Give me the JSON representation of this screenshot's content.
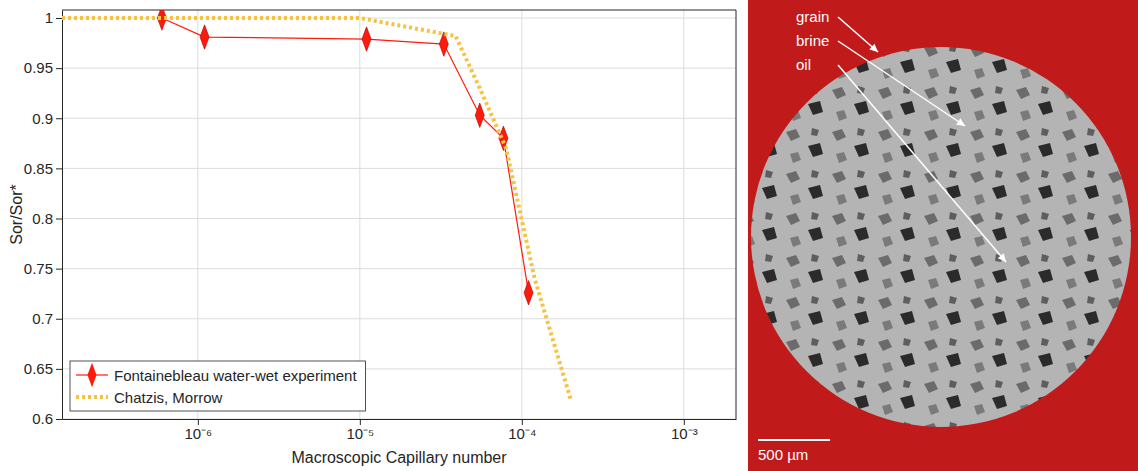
{
  "chart_data": {
    "type": "line",
    "x_label": "Macroscopic Capillary number",
    "y_label": "Sor/Sor*",
    "log": "x",
    "grid": true,
    "legend": "lower-left",
    "xlim": [
      1.45e-07,
      0.0021
    ],
    "ylim": [
      0.6,
      1.008
    ],
    "xticks": [
      {
        "value": 1e-06,
        "label": "10⁻⁶"
      },
      {
        "value": 1e-05,
        "label": "10⁻⁵"
      },
      {
        "value": 0.0001,
        "label": "10⁻⁴"
      },
      {
        "value": 0.001,
        "label": "10⁻³"
      }
    ],
    "yticks": [
      0.6,
      0.65,
      0.7,
      0.75,
      0.8,
      0.85,
      0.9,
      0.95,
      1
    ],
    "series": [
      {
        "name": "Fontainebleau water-wet experiment",
        "color": "#ff1a0d",
        "marker": "diamond",
        "line_style": "solid",
        "x": [
          6e-07,
          1.1e-06,
          1.1e-05,
          3.3e-05,
          5.5e-05,
          7.7e-05,
          0.00011
        ],
        "values": [
          1.0,
          0.981,
          0.979,
          0.974,
          0.903,
          0.88,
          0.726
        ]
      },
      {
        "name": "Chatzis, Morrow",
        "color": "#f5c242",
        "marker": "none",
        "line_style": "dotted",
        "x": [
          1.45e-07,
          1e-05,
          3.9e-05,
          5.5e-05,
          8e-05,
          0.00012,
          0.0002
        ],
        "values": [
          1.0,
          1.0,
          0.982,
          0.93,
          0.87,
          0.74,
          0.62
        ]
      }
    ]
  },
  "image": {
    "labels": [
      "grain",
      "brine",
      "oil"
    ],
    "scale_bar": "500 µm"
  }
}
